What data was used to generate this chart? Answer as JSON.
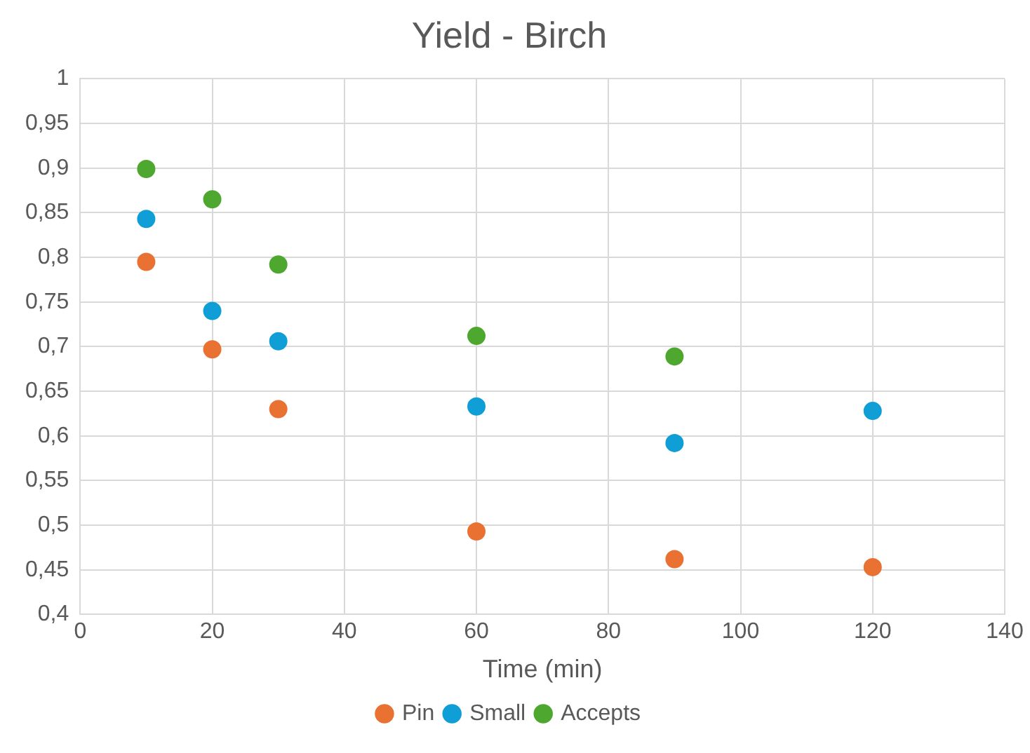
{
  "chart_data": {
    "type": "scatter",
    "title": "Yield - Birch",
    "xlabel": "Time (min)",
    "xlim": [
      0,
      140
    ],
    "xticks": [
      0,
      20,
      40,
      60,
      80,
      100,
      120,
      140
    ],
    "ylim": [
      0.4,
      1
    ],
    "yticks": [
      {
        "value": 0.4,
        "label": "0,4"
      },
      {
        "value": 0.45,
        "label": "0,45"
      },
      {
        "value": 0.5,
        "label": "0,5"
      },
      {
        "value": 0.55,
        "label": "0,55"
      },
      {
        "value": 0.6,
        "label": "0,6"
      },
      {
        "value": 0.65,
        "label": "0,65"
      },
      {
        "value": 0.7,
        "label": "0,7"
      },
      {
        "value": 0.75,
        "label": "0,75"
      },
      {
        "value": 0.8,
        "label": "0,8"
      },
      {
        "value": 0.85,
        "label": "0,85"
      },
      {
        "value": 0.9,
        "label": "0,9"
      },
      {
        "value": 0.95,
        "label": "0,95"
      },
      {
        "value": 1,
        "label": "1"
      }
    ],
    "grid": true,
    "legend": "bottom",
    "marker": "circle",
    "series": [
      {
        "name": "Pin",
        "color": "#e97132",
        "x": [
          10,
          20,
          30,
          60,
          90,
          120
        ],
        "values": [
          0.795,
          0.697,
          0.63,
          0.493,
          0.462,
          0.453
        ]
      },
      {
        "name": "Small",
        "color": "#0f9ed5",
        "x": [
          10,
          20,
          30,
          60,
          90,
          120
        ],
        "values": [
          0.843,
          0.74,
          0.706,
          0.633,
          0.592,
          0.628
        ]
      },
      {
        "name": "Accepts",
        "color": "#4ea72e",
        "x": [
          10,
          20,
          30,
          60,
          90
        ],
        "values": [
          0.899,
          0.865,
          0.792,
          0.712,
          0.689
        ]
      }
    ]
  }
}
